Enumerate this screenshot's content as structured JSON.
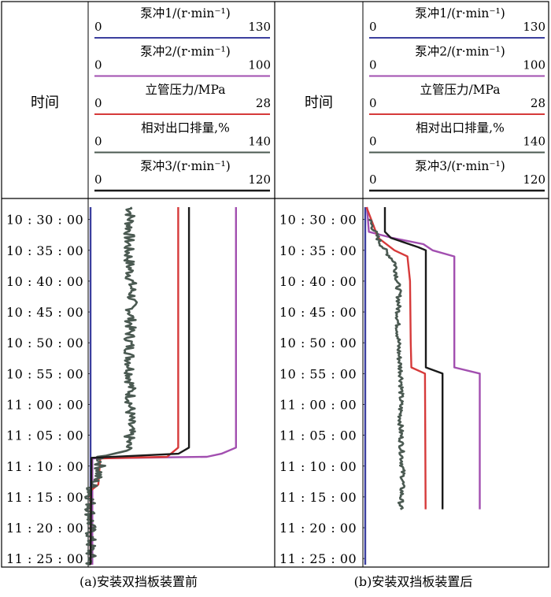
{
  "time_header": "时间",
  "ticks": [
    "10:30:00",
    "10:35:00",
    "10:40:00",
    "10:45:00",
    "10:50:00",
    "10:55:00",
    "11:00:00",
    "11:05:00",
    "11:10:00",
    "11:15:00",
    "11:20:00",
    "11:25:00"
  ],
  "legend": [
    {
      "label": "泵冲1/(r·min⁻¹)",
      "min": "0",
      "max": "130",
      "color": "#3b3f9e"
    },
    {
      "label": "泵冲2/(r·min⁻¹)",
      "min": "0",
      "max": "100",
      "color": "#a24fb0"
    },
    {
      "label": "立管压力/MPa",
      "min": "0",
      "max": "28",
      "color": "#d63a3a"
    },
    {
      "label": "相对出口排量,%",
      "min": "0",
      "max": "140",
      "color": "#4b5a52"
    },
    {
      "label": "泵冲3/(r·min⁻¹)",
      "min": "0",
      "max": "120",
      "color": "#1a1a1a"
    }
  ],
  "captions": [
    "(a)安装双挡板装置前",
    "(b)安装双挡板装置后"
  ],
  "chart_data": [
    {
      "type": "line",
      "title": "(a)安装双挡板装置前",
      "ylabel": "时间",
      "y_axis": "time",
      "ylim": [
        "10:28:00",
        "11:26:00"
      ],
      "series": [
        {
          "name": "泵冲1/(r·min⁻¹)",
          "xlim": [
            0,
            130
          ],
          "points": [
            [
              0,
              "10:28:00"
            ],
            [
              0,
              "11:26:00"
            ]
          ]
        },
        {
          "name": "泵冲2/(r·min⁻¹)",
          "xlim": [
            0,
            100
          ],
          "points": [
            [
              80,
              "10:28:00"
            ],
            [
              80,
              "11:07:00"
            ],
            [
              72,
              "11:08:00"
            ],
            [
              64,
              "11:08:30"
            ],
            [
              1,
              "11:08:45"
            ],
            [
              1,
              "11:26:00"
            ]
          ]
        },
        {
          "name": "立管压力/MPa",
          "xlim": [
            0,
            28
          ],
          "points": [
            [
              13.5,
              "10:28:00"
            ],
            [
              13.5,
              "11:07:00"
            ],
            [
              11.8,
              "11:08:30"
            ],
            [
              1.5,
              "11:08:45"
            ],
            [
              1.2,
              "11:13:00"
            ],
            [
              0,
              "11:14:00"
            ],
            [
              0,
              "11:26:00"
            ]
          ]
        },
        {
          "name": "相对出口排量,%",
          "xlim": [
            0,
            140
          ],
          "points": [
            [
              31,
              "10:28:00"
            ],
            [
              29,
              "10:35:00"
            ],
            [
              32,
              "10:42:00"
            ],
            [
              30,
              "10:50:00"
            ],
            [
              31,
              "10:58:00"
            ],
            [
              30,
              "11:05:00"
            ],
            [
              28,
              "11:07:30"
            ],
            [
              8,
              "11:08:30"
            ],
            [
              7,
              "11:11:00"
            ],
            [
              2,
              "11:13:00"
            ],
            [
              0,
              "11:14:00"
            ],
            [
              0,
              "11:26:00"
            ]
          ]
        },
        {
          "name": "泵冲3/(r·min⁻¹)",
          "xlim": [
            0,
            120
          ],
          "points": [
            [
              65,
              "10:28:00"
            ],
            [
              65,
              "11:07:00"
            ],
            [
              58,
              "11:08:00"
            ],
            [
              0.6,
              "11:08:40"
            ],
            [
              0,
              "11:26:00"
            ]
          ]
        }
      ]
    },
    {
      "type": "line",
      "title": "(b)安装双挡板装置后",
      "ylabel": "时间",
      "y_axis": "time",
      "ylim": [
        "10:28:00",
        "11:26:00"
      ],
      "series": [
        {
          "name": "泵冲1/(r·min⁻¹)",
          "xlim": [
            0,
            130
          ],
          "points": [
            [
              0,
              "10:28:00"
            ],
            [
              0,
              "11:26:00"
            ]
          ]
        },
        {
          "name": "泵冲2/(r·min⁻¹)",
          "xlim": [
            0,
            100
          ],
          "points": [
            [
              1,
              "10:28:00"
            ],
            [
              2,
              "10:32:00"
            ],
            [
              15,
              "10:33:00"
            ],
            [
              32,
              "10:34:00"
            ],
            [
              37,
              "10:35:00"
            ],
            [
              49,
              "10:36:00"
            ],
            [
              49,
              "10:54:00"
            ],
            [
              63,
              "10:55:00"
            ],
            [
              63,
              "11:17:00"
            ]
          ]
        },
        {
          "name": "立管压力/MPa",
          "xlim": [
            0,
            28
          ],
          "points": [
            [
              0.2,
              "10:28:00"
            ],
            [
              2,
              "10:33:00"
            ],
            [
              4.5,
              "10:35:00"
            ],
            [
              6.5,
              "10:36:00"
            ],
            [
              6.9,
              "10:40:00"
            ],
            [
              7.0,
              "10:50:00"
            ],
            [
              7.1,
              "10:54:00"
            ],
            [
              9.2,
              "10:55:00"
            ],
            [
              9.3,
              "11:17:00"
            ]
          ]
        },
        {
          "name": "相对出口排量,%",
          "xlim": [
            0,
            140
          ],
          "points": [
            [
              3,
              "10:30:00"
            ],
            [
              12,
              "10:34:00"
            ],
            [
              17,
              "10:35:30"
            ],
            [
              23,
              "10:37:00"
            ],
            [
              26,
              "10:42:00"
            ],
            [
              25,
              "10:47:00"
            ],
            [
              26,
              "10:52:00"
            ],
            [
              28,
              "10:56:00"
            ],
            [
              27,
              "11:02:00"
            ],
            [
              28,
              "11:07:00"
            ],
            [
              29,
              "11:12:00"
            ],
            [
              27,
              "11:17:00"
            ]
          ]
        },
        {
          "name": "泵冲3/(r·min⁻¹)",
          "xlim": [
            0,
            120
          ],
          "points": [
            [
              13,
              "10:28:00"
            ],
            [
              13,
              "10:32:00"
            ],
            [
              17,
              "10:33:00"
            ],
            [
              35,
              "10:34:30"
            ],
            [
              40,
              "10:35:00"
            ],
            [
              40,
              "10:54:00"
            ],
            [
              51,
              "10:55:00"
            ],
            [
              51,
              "11:17:00"
            ]
          ]
        }
      ]
    }
  ]
}
